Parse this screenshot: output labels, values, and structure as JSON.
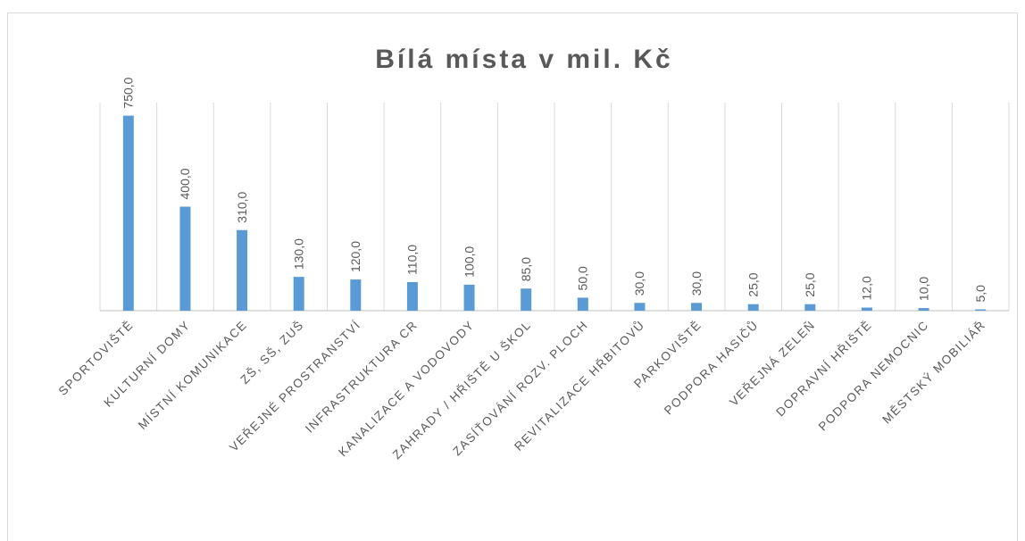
{
  "chart_data": {
    "type": "bar",
    "title": "Bílá místa v mil. Kč",
    "categories": [
      "SPORTOVIŠTĚ",
      "KULTURNÍ DOMY",
      "MÍSTNÍ KOMUNIKACE",
      "ZŠ, SŠ, ZUŠ",
      "VEŘEJNÉ PROSTRANSTVÍ",
      "INFRASTRUKTURA CR",
      "KANALIZACE A VODOVODY",
      "ZAHRADY / HŘIŠTĚ U ŠKOL",
      "ZASÍŤOVÁNÍ ROZV. PLOCH",
      "REVITALIZACE HŘBITOVŮ",
      "PARKOVIŠTĚ",
      "PODPORA HASIČŮ",
      "VEŘEJNÁ ZELEŇ",
      "DOPRAVNÍ HŘIŠTĚ",
      "PODPORA NEMOCNIC",
      "MĚSTSKÝ MOBILIÁŘ"
    ],
    "values": [
      750,
      400,
      310,
      130,
      120,
      110,
      100,
      85,
      50,
      30,
      30,
      25,
      25,
      12,
      10,
      5
    ],
    "value_labels": [
      "750,0",
      "400,0",
      "310,0",
      "130,0",
      "120,0",
      "110,0",
      "100,0",
      "85,0",
      "50,0",
      "30,0",
      "30,0",
      "25,0",
      "25,0",
      "12,0",
      "10,0",
      "5,0"
    ],
    "color": "#5b9bd5",
    "ylim": [
      0,
      800
    ]
  }
}
